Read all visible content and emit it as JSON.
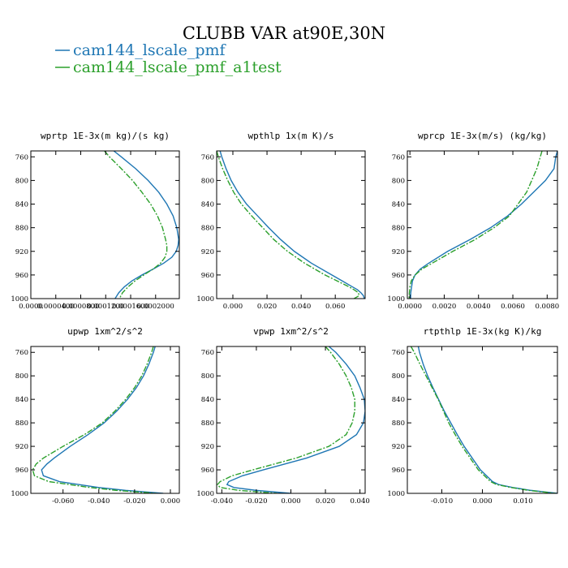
{
  "figure": {
    "title": "CLUBB VAR at90E,30N",
    "series": [
      {
        "name": "cam144_lscale_pmf",
        "color": "#1f77b4",
        "dash": "none"
      },
      {
        "name": "cam144_lscale_pmf_a1test",
        "color": "#2ca02c",
        "dash": "7,2,2,2"
      }
    ]
  },
  "chart_data": [
    {
      "type": "line",
      "title": "wprtp  1E-3x(m kg)/(s kg)",
      "xlim": [
        0.0,
        0.000238
      ],
      "ylim": [
        1000,
        750
      ],
      "xticks": [
        0.0,
        4e-05,
        8e-05,
        0.00012,
        0.00016,
        0.0002
      ],
      "xtick_labels": [
        "0.0000",
        "0.0000400",
        "0.0000800",
        "0.0001200",
        "0.0001600",
        "0.0002000"
      ],
      "yticks": [
        760,
        800,
        840,
        880,
        920,
        960,
        1000
      ],
      "y": [
        750,
        760,
        780,
        800,
        820,
        840,
        860,
        880,
        900,
        910,
        920,
        930,
        940,
        950,
        960,
        970,
        980,
        990,
        1000
      ],
      "series": [
        {
          "name": "cam144_lscale_pmf",
          "x": [
            0.000133,
            0.000145,
            0.000168,
            0.000188,
            0.000205,
            0.000218,
            0.000228,
            0.000234,
            0.000237,
            0.000236,
            0.000233,
            0.000226,
            0.000213,
            0.000196,
            0.000178,
            0.000162,
            0.00015,
            0.000141,
            0.000135
          ]
        },
        {
          "name": "cam144_lscale_pmf_a1test",
          "x": [
            0.000118,
            0.000126,
            0.000145,
            0.000163,
            0.000178,
            0.000192,
            0.000203,
            0.000211,
            0.000216,
            0.000218,
            0.000218,
            0.000215,
            0.000208,
            0.000196,
            0.000181,
            0.000167,
            0.000156,
            0.000147,
            0.000142
          ]
        }
      ]
    },
    {
      "type": "line",
      "title": "wpthlp  1x(m K)/s",
      "xlim": [
        -0.0095,
        0.0775
      ],
      "ylim": [
        1000,
        750
      ],
      "xticks": [
        0.0,
        0.02,
        0.04,
        0.06
      ],
      "xtick_labels": [
        "0.000",
        "0.020",
        "0.040",
        "0.060"
      ],
      "yticks": [
        760,
        800,
        840,
        880,
        920,
        960,
        1000
      ],
      "y": [
        750,
        760,
        780,
        800,
        820,
        840,
        860,
        880,
        900,
        920,
        940,
        960,
        970,
        980,
        985,
        990,
        995,
        1000
      ],
      "series": [
        {
          "name": "cam144_lscale_pmf",
          "x": [
            -0.0075,
            -0.0065,
            -0.004,
            -0.001,
            0.003,
            0.008,
            0.0145,
            0.021,
            0.028,
            0.036,
            0.046,
            0.058,
            0.064,
            0.07,
            0.073,
            0.075,
            0.0765,
            0.077
          ]
        },
        {
          "name": "cam144_lscale_pmf_a1test",
          "x": [
            -0.0095,
            -0.0085,
            -0.006,
            -0.003,
            0.0005,
            0.005,
            0.011,
            0.0175,
            0.024,
            0.032,
            0.042,
            0.054,
            0.061,
            0.068,
            0.071,
            0.0735,
            0.074,
            0.071
          ]
        }
      ]
    },
    {
      "type": "line",
      "title": "wprcp  1E-3x(m/s) (kg/kg)",
      "xlim": [
        -0.00015,
        0.0086
      ],
      "ylim": [
        1000,
        750
      ],
      "xticks": [
        0.0,
        0.002,
        0.004,
        0.006,
        0.008
      ],
      "xtick_labels": [
        "0.0000",
        "0.0020",
        "0.0040",
        "0.0060",
        "0.0080"
      ],
      "yticks": [
        760,
        800,
        840,
        880,
        920,
        960,
        1000
      ],
      "y": [
        750,
        760,
        780,
        800,
        820,
        840,
        860,
        880,
        900,
        920,
        940,
        950,
        960,
        970,
        980,
        990,
        1000
      ],
      "series": [
        {
          "name": "cam144_lscale_pmf",
          "x": [
            0.0086,
            0.0085,
            0.0084,
            0.0079,
            0.0072,
            0.0065,
            0.0057,
            0.0047,
            0.0035,
            0.0022,
            0.0011,
            0.0006,
            0.0003,
            0.00015,
            0.0001,
            5e-05,
            4e-05
          ]
        },
        {
          "name": "cam144_lscale_pmf_a1test",
          "x": [
            0.0077,
            0.0076,
            0.0074,
            0.0071,
            0.0068,
            0.0063,
            0.0058,
            0.0049,
            0.0038,
            0.0025,
            0.0013,
            0.0007,
            0.0003,
            8e-05,
            0.0,
            -3e-05,
            -5e-05
          ]
        }
      ]
    },
    {
      "type": "line",
      "title": "upwp  1xm^2/s^2",
      "xlim": [
        -0.078,
        0.005
      ],
      "ylim": [
        1000,
        750
      ],
      "xticks": [
        -0.06,
        -0.04,
        -0.02,
        0.0
      ],
      "xtick_labels": [
        "-0.060",
        "-0.040",
        "-0.020",
        "0.000"
      ],
      "yticks": [
        760,
        800,
        840,
        880,
        920,
        960,
        1000
      ],
      "y": [
        750,
        760,
        780,
        800,
        820,
        840,
        860,
        880,
        900,
        920,
        940,
        950,
        960,
        970,
        980,
        990,
        995,
        1000
      ],
      "series": [
        {
          "name": "cam144_lscale_pmf",
          "x": [
            -0.0085,
            -0.0095,
            -0.012,
            -0.015,
            -0.019,
            -0.024,
            -0.03,
            -0.037,
            -0.046,
            -0.056,
            -0.065,
            -0.069,
            -0.072,
            -0.071,
            -0.062,
            -0.04,
            -0.025,
            -0.004
          ]
        },
        {
          "name": "cam144_lscale_pmf_a1test",
          "x": [
            -0.0095,
            -0.0105,
            -0.013,
            -0.016,
            -0.02,
            -0.025,
            -0.031,
            -0.038,
            -0.048,
            -0.06,
            -0.071,
            -0.075,
            -0.077,
            -0.076,
            -0.068,
            -0.045,
            -0.03,
            -0.008
          ]
        }
      ]
    },
    {
      "type": "line",
      "title": "vpwp  1xm^2/s^2",
      "xlim": [
        -0.043,
        0.043
      ],
      "ylim": [
        1000,
        750
      ],
      "xticks": [
        -0.04,
        -0.02,
        0.0,
        0.02,
        0.04
      ],
      "xtick_labels": [
        "-0.040",
        "-0.020",
        "0.000",
        "0.020",
        "0.040"
      ],
      "yticks": [
        760,
        800,
        840,
        880,
        920,
        960,
        1000
      ],
      "y": [
        750,
        760,
        780,
        800,
        820,
        840,
        860,
        880,
        900,
        920,
        940,
        960,
        970,
        980,
        985,
        990,
        995,
        1000
      ],
      "series": [
        {
          "name": "cam144_lscale_pmf",
          "x": [
            0.022,
            0.026,
            0.032,
            0.037,
            0.04,
            0.0425,
            0.043,
            0.042,
            0.038,
            0.028,
            0.009,
            -0.016,
            -0.028,
            -0.036,
            -0.037,
            -0.033,
            -0.02,
            0.0
          ]
        },
        {
          "name": "cam144_lscale_pmf_a1test",
          "x": [
            0.02,
            0.023,
            0.028,
            0.032,
            0.035,
            0.037,
            0.037,
            0.0355,
            0.032,
            0.022,
            0.003,
            -0.022,
            -0.034,
            -0.041,
            -0.0425,
            -0.041,
            -0.03,
            -0.008
          ]
        }
      ]
    },
    {
      "type": "line",
      "title": "rtpthlp  1E-3x(kg K)/kg",
      "xlim": [
        -0.0185,
        0.0185
      ],
      "ylim": [
        1000,
        750
      ],
      "xticks": [
        -0.01,
        0.0,
        0.01
      ],
      "xtick_labels": [
        "-0.010",
        "0.000",
        "0.010"
      ],
      "yticks": [
        760,
        800,
        840,
        880,
        920,
        960,
        1000
      ],
      "y": [
        750,
        760,
        780,
        800,
        820,
        840,
        860,
        880,
        900,
        920,
        940,
        960,
        970,
        980,
        985,
        990,
        995,
        1000
      ],
      "series": [
        {
          "name": "cam144_lscale_pmf",
          "x": [
            -0.0158,
            -0.0155,
            -0.0146,
            -0.0135,
            -0.0122,
            -0.0108,
            -0.0094,
            -0.0078,
            -0.0062,
            -0.0045,
            -0.0025,
            -0.0005,
            0.001,
            0.0025,
            0.004,
            0.0075,
            0.012,
            0.0185
          ]
        },
        {
          "name": "cam144_lscale_pmf_a1test",
          "x": [
            -0.0176,
            -0.0168,
            -0.0154,
            -0.0139,
            -0.0124,
            -0.0109,
            -0.0096,
            -0.0083,
            -0.0067,
            -0.005,
            -0.003,
            -0.001,
            0.0005,
            0.002,
            0.0035,
            0.007,
            0.0115,
            0.018
          ]
        }
      ]
    }
  ]
}
